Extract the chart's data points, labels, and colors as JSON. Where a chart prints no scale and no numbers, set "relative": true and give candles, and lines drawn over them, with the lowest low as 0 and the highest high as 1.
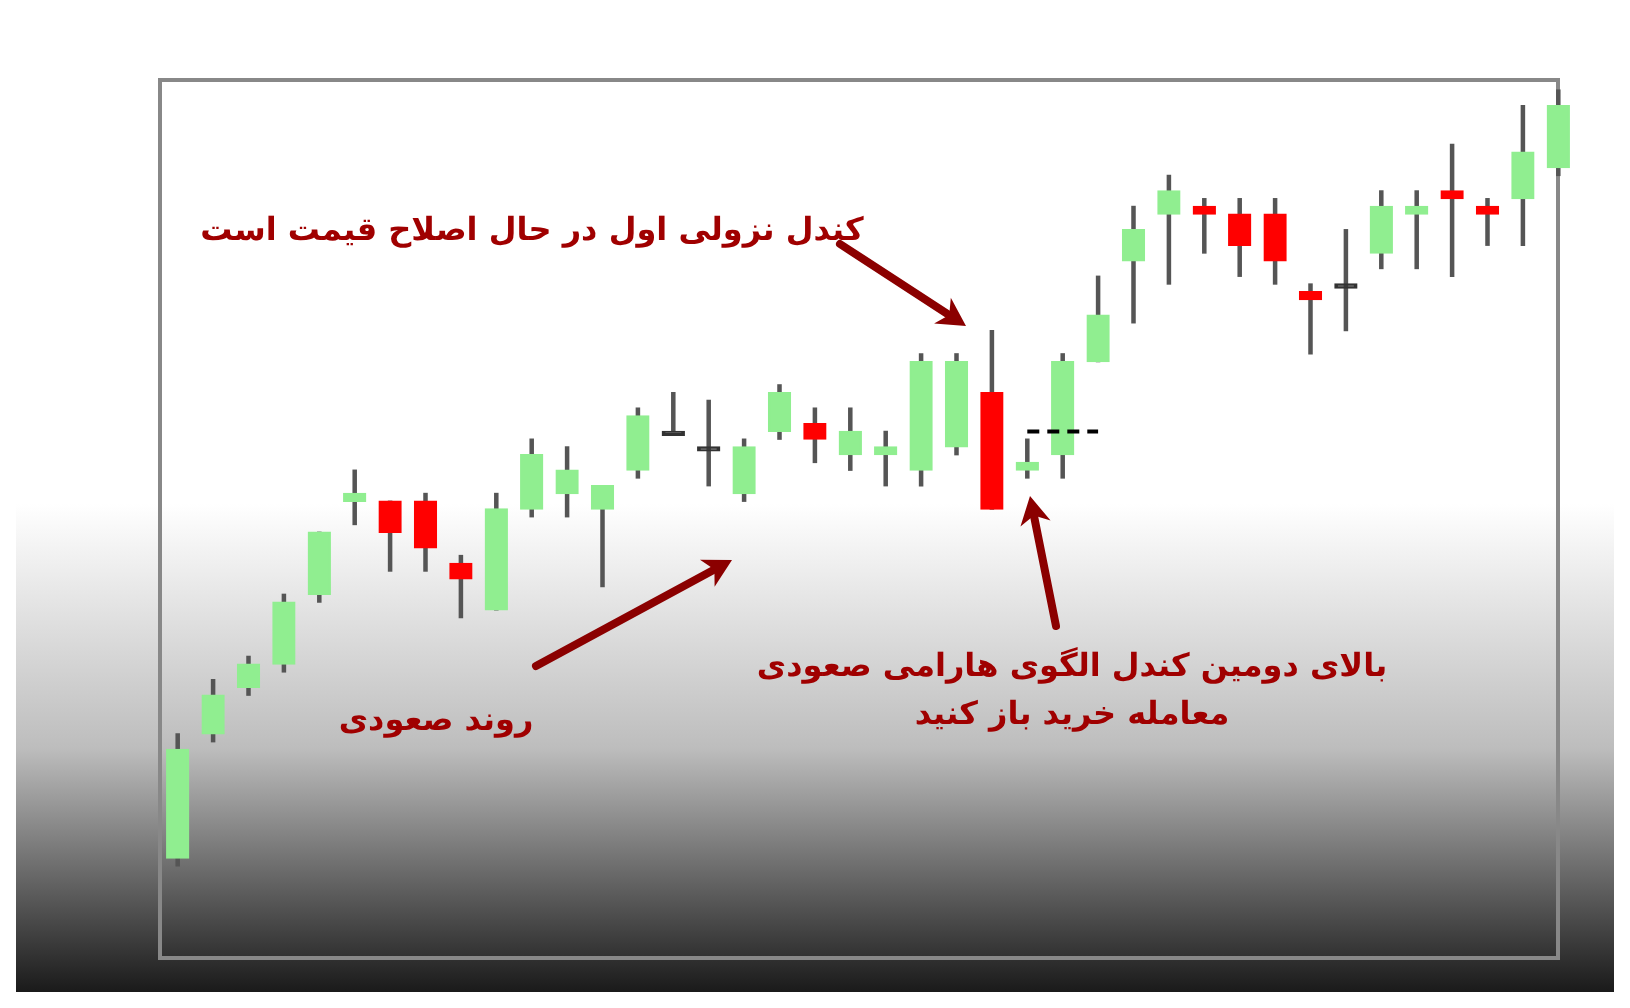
{
  "chart_data": {
    "type": "candlestick",
    "relative": true,
    "legend": false,
    "grid": false,
    "categories": [
      null,
      null,
      null,
      null,
      null,
      null,
      null,
      null,
      null,
      null,
      null,
      null,
      null,
      null,
      null,
      null,
      null,
      null,
      null,
      null,
      null,
      null,
      null,
      null,
      null,
      null,
      null,
      null,
      null,
      null,
      null,
      null,
      null,
      null,
      null,
      null,
      null,
      null,
      null,
      null
    ],
    "ohlc": [
      [
        0.01,
        0.17,
        0,
        0.15
      ],
      [
        0.17,
        0.24,
        0.16,
        0.22
      ],
      [
        0.23,
        0.27,
        0.22,
        0.26
      ],
      [
        0.26,
        0.35,
        0.25,
        0.34
      ],
      [
        0.35,
        0.43,
        0.34,
        0.43
      ],
      [
        0.47,
        0.51,
        0.44,
        0.48
      ],
      [
        0.47,
        0.47,
        0.38,
        0.43
      ],
      [
        0.47,
        0.48,
        0.38,
        0.41
      ],
      [
        0.39,
        0.4,
        0.32,
        0.37
      ],
      [
        0.33,
        0.48,
        0.33,
        0.46
      ],
      [
        0.46,
        0.55,
        0.45,
        0.53
      ],
      [
        0.48,
        0.54,
        0.45,
        0.51
      ],
      [
        0.46,
        0.49,
        0.36,
        0.49
      ],
      [
        0.51,
        0.59,
        0.5,
        0.58
      ],
      [
        0.56,
        0.61,
        0.56,
        0.56
      ],
      [
        0.54,
        0.6,
        0.49,
        0.54
      ],
      [
        0.48,
        0.55,
        0.47,
        0.54
      ],
      [
        0.56,
        0.62,
        0.55,
        0.61
      ],
      [
        0.57,
        0.59,
        0.52,
        0.55
      ],
      [
        0.53,
        0.59,
        0.51,
        0.56
      ],
      [
        0.53,
        0.56,
        0.49,
        0.54
      ],
      [
        0.51,
        0.66,
        0.49,
        0.65
      ],
      [
        0.54,
        0.66,
        0.53,
        0.65
      ],
      [
        0.61,
        0.69,
        0.46,
        0.46
      ],
      [
        0.51,
        0.55,
        0.5,
        0.52
      ],
      [
        0.53,
        0.66,
        0.5,
        0.65
      ],
      [
        0.65,
        0.76,
        0.65,
        0.71
      ],
      [
        0.78,
        0.85,
        0.7,
        0.82
      ],
      [
        0.84,
        0.89,
        0.75,
        0.87
      ],
      [
        0.85,
        0.86,
        0.79,
        0.84
      ],
      [
        0.84,
        0.86,
        0.76,
        0.8
      ],
      [
        0.84,
        0.86,
        0.75,
        0.78
      ],
      [
        0.74,
        0.75,
        0.66,
        0.73
      ],
      [
        0.75,
        0.82,
        0.69,
        0.75
      ],
      [
        0.79,
        0.87,
        0.77,
        0.85
      ],
      [
        0.84,
        0.87,
        0.77,
        0.85
      ],
      [
        0.87,
        0.93,
        0.76,
        0.86
      ],
      [
        0.85,
        0.86,
        0.8,
        0.84
      ],
      [
        0.86,
        0.98,
        0.8,
        0.92
      ],
      [
        0.9,
        1,
        0.89,
        0.98
      ]
    ],
    "colors": [
      "#90ee90",
      "#90ee90",
      "#90ee90",
      "#90ee90",
      "#90ee90",
      "#90ee90",
      "#ff0000",
      "#ff0000",
      "#ff0000",
      "#90ee90",
      "#90ee90",
      "#90ee90",
      "#90ee90",
      "#90ee90",
      "#333333",
      "#333333",
      "#90ee90",
      "#90ee90",
      "#ff0000",
      "#90ee90",
      "#90ee90",
      "#90ee90",
      "#90ee90",
      "#ff0000",
      "#90ee90",
      "#90ee90",
      "#90ee90",
      "#90ee90",
      "#90ee90",
      "#ff0000",
      "#ff0000",
      "#ff0000",
      "#ff0000",
      "#333333",
      "#90ee90",
      "#90ee90",
      "#ff0000",
      "#ff0000",
      "#90ee90",
      "#90ee90"
    ],
    "series": [
      {
        "type": "line",
        "color": "#000000",
        "line_style": "dashed",
        "marker": "none",
        "values": [
          null,
          null,
          null,
          null,
          null,
          null,
          null,
          null,
          null,
          null,
          null,
          null,
          null,
          null,
          null,
          null,
          null,
          null,
          null,
          null,
          null,
          null,
          null,
          null,
          0.56,
          0.56,
          0.56,
          null,
          null,
          null,
          null,
          null,
          null,
          null,
          null,
          null,
          null,
          null,
          null,
          null
        ]
      }
    ],
    "annotations": [
      "کندل نزولی اول در حال اصلاح قیمت است",
      "روند صعودی",
      "بالای دومین کندل الگوی هارامی صعودی\nمعامله خرید باز کنید"
    ]
  }
}
